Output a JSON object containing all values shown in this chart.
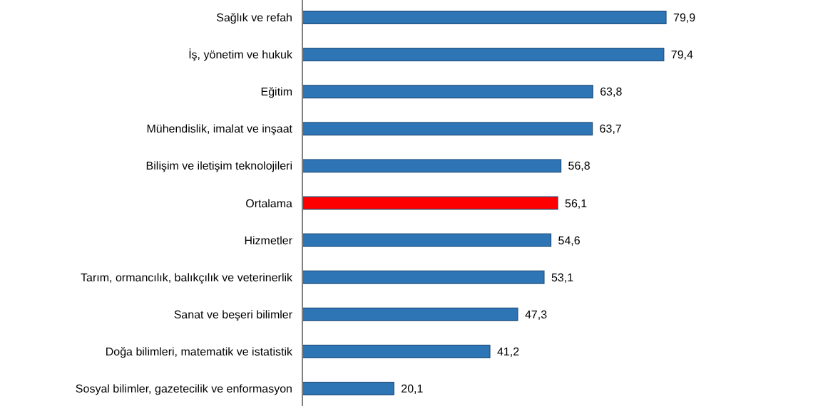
{
  "chart_data": {
    "type": "bar",
    "orientation": "horizontal",
    "categories": [
      "Sağlık ve refah",
      "İş, yönetim ve hukuk",
      "Eğitim",
      "Mühendislik, imalat ve inşaat",
      "Bilişim ve iletişim teknolojileri",
      "Ortalama",
      "Hizmetler",
      "Tarım, ormancılık, balıkçılık ve veterinerlik",
      "Sanat ve beşeri bilimler",
      "Doğa bilimleri, matematik ve istatistik",
      "Sosyal bilimler, gazetecilik ve enformasyon"
    ],
    "values": [
      79.9,
      79.4,
      63.8,
      63.7,
      56.8,
      56.1,
      54.6,
      53.1,
      47.3,
      41.2,
      20.1
    ],
    "value_labels": [
      "79,9",
      "79,4",
      "63,8",
      "63,7",
      "56,8",
      "56,1",
      "54,6",
      "53,1",
      "47,3",
      "41,2",
      "20,1"
    ],
    "colors": [
      "#2e75b6",
      "#2e75b6",
      "#2e75b6",
      "#2e75b6",
      "#2e75b6",
      "#ff0000",
      "#2e75b6",
      "#2e75b6",
      "#2e75b6",
      "#2e75b6",
      "#2e75b6"
    ]
  }
}
